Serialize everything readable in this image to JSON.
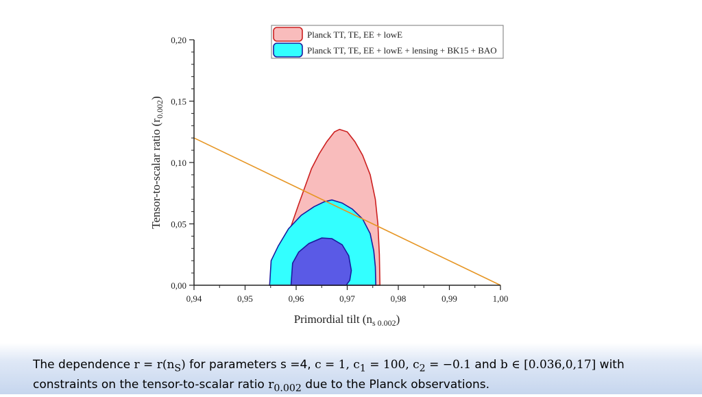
{
  "chart_data": {
    "type": "area",
    "xlabel_main": "Primordial tilt (n",
    "xlabel_sub": "s 0.002",
    "xlabel_end": ")",
    "ylabel_main": "Tensor-to-scalar ratio (r",
    "ylabel_sub": "0.002",
    "ylabel_end": ")",
    "xlim": [
      0.94,
      1.0
    ],
    "ylim": [
      0.0,
      0.2
    ],
    "x_ticks": [
      0.94,
      0.95,
      0.96,
      0.97,
      0.98,
      0.99,
      1.0
    ],
    "x_tick_labels": [
      "0,94",
      "0,95",
      "0,96",
      "0,97",
      "0,98",
      "0,99",
      "1,00"
    ],
    "y_ticks": [
      0.0,
      0.05,
      0.1,
      0.15,
      0.2
    ],
    "y_tick_labels": [
      "0,00",
      "0,05",
      "0,10",
      "0,15",
      "0,20"
    ],
    "legend_position": "top-right",
    "series": [
      {
        "name": "Planck TT, TE, EE + lowE",
        "fill": "#f9bcbc",
        "stroke": "#cc1f1f",
        "points": [
          [
            0.9548,
            0.0
          ],
          [
            0.9555,
            0.01
          ],
          [
            0.957,
            0.027
          ],
          [
            0.959,
            0.048
          ],
          [
            0.9605,
            0.066
          ],
          [
            0.9618,
            0.081
          ],
          [
            0.963,
            0.095
          ],
          [
            0.9645,
            0.107
          ],
          [
            0.966,
            0.117
          ],
          [
            0.9675,
            0.125
          ],
          [
            0.9685,
            0.127
          ],
          [
            0.97,
            0.125
          ],
          [
            0.9715,
            0.117
          ],
          [
            0.973,
            0.106
          ],
          [
            0.9745,
            0.09
          ],
          [
            0.9755,
            0.07
          ],
          [
            0.976,
            0.05
          ],
          [
            0.9763,
            0.025
          ],
          [
            0.9764,
            0.0
          ]
        ]
      },
      {
        "name": "Planck TT, TE, EE + lowE + lensing + BK15 + BAO",
        "fill": "#33ffff",
        "stroke": "#1a1a9e",
        "points": [
          [
            0.9548,
            0.0
          ],
          [
            0.9551,
            0.02
          ],
          [
            0.9565,
            0.032
          ],
          [
            0.9585,
            0.046
          ],
          [
            0.961,
            0.057
          ],
          [
            0.9635,
            0.064
          ],
          [
            0.9655,
            0.068
          ],
          [
            0.967,
            0.0695
          ],
          [
            0.969,
            0.067
          ],
          [
            0.971,
            0.062
          ],
          [
            0.973,
            0.054
          ],
          [
            0.9745,
            0.042
          ],
          [
            0.9752,
            0.028
          ],
          [
            0.9755,
            0.015
          ],
          [
            0.9756,
            0.0
          ]
        ]
      },
      {
        "name": "",
        "fill": "#5a5ae6",
        "stroke": "#1a1a9e",
        "points": [
          [
            0.959,
            0.0
          ],
          [
            0.9593,
            0.018
          ],
          [
            0.9605,
            0.027
          ],
          [
            0.9625,
            0.034
          ],
          [
            0.965,
            0.0385
          ],
          [
            0.967,
            0.038
          ],
          [
            0.969,
            0.033
          ],
          [
            0.9703,
            0.024
          ],
          [
            0.9708,
            0.012
          ],
          [
            0.9705,
            0.004
          ],
          [
            0.9698,
            0.0
          ]
        ]
      }
    ],
    "lines": [
      {
        "color": "#e69523",
        "points": [
          [
            0.94,
            0.12
          ],
          [
            1.0,
            0.0
          ]
        ]
      }
    ]
  },
  "caption": {
    "t1": "The dependence ",
    "m1": "r  =  r(n",
    "m1sub": "S",
    "m1b": ")",
    "t2": " for parameters s =4, ",
    "m2": "c = 1, c",
    "m2sub": "1",
    "m2b": " = 100, c",
    "m2sub2": "2",
    "m2c": " = −0.1",
    "t3": "  and ",
    "m3": "b ∈ [0.036,0,17]",
    "t4": "  with",
    "t5": "constraints on the tensor-to-scalar ratio ",
    "m4": "r",
    "m4sub": "0.002",
    "t6": " due to the Planck observations."
  }
}
